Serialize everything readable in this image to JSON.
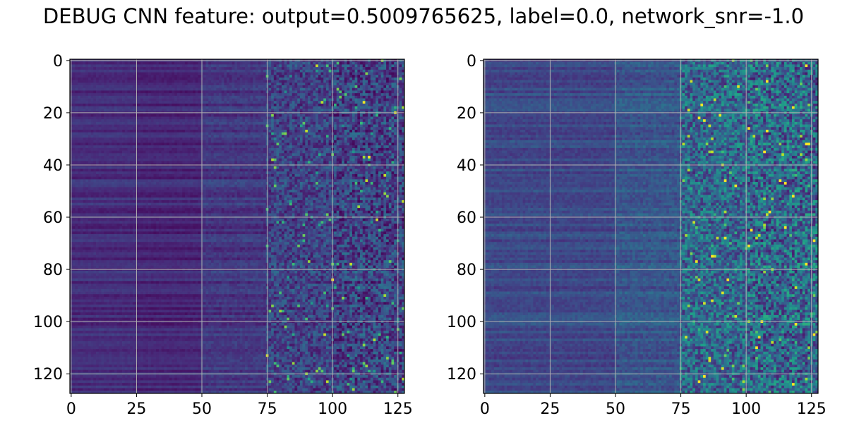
{
  "figure": {
    "title": "DEBUG CNN feature: output=0.5009765625, label=0.0, network_snr=-1.0"
  },
  "colormap": {
    "name": "viridis",
    "stops": [
      "#440154",
      "#482878",
      "#3e4a89",
      "#31688e",
      "#26828e",
      "#1f9e89",
      "#35b779",
      "#6ece58",
      "#b5de2b",
      "#fde725"
    ]
  },
  "chart_data": [
    {
      "type": "heatmap",
      "rows": 128,
      "cols": 128,
      "xlim": [
        -0.5,
        127.5
      ],
      "ylim": [
        127.5,
        -0.5
      ],
      "x_ticks": [
        0,
        25,
        50,
        75,
        100,
        125
      ],
      "y_ticks": [
        0,
        20,
        40,
        60,
        80,
        100,
        120
      ],
      "grid": true,
      "value_range": [
        0,
        1
      ],
      "profile": {
        "regions": [
          {
            "col_start": 0,
            "col_end": 25,
            "mean": 0.13
          },
          {
            "col_start": 25,
            "col_end": 50,
            "mean": 0.11
          },
          {
            "col_start": 50,
            "col_end": 75,
            "mean": 0.16
          },
          {
            "col_start": 75,
            "col_end": 128,
            "mean": 0.2
          }
        ],
        "noise_by_column": [
          [
            0,
            0.02
          ],
          [
            50,
            0.04
          ],
          [
            75,
            0.14
          ],
          [
            100,
            0.18
          ]
        ],
        "peak": {
          "row": 37,
          "col": 114,
          "value": 1.0
        }
      }
    },
    {
      "type": "heatmap",
      "rows": 128,
      "cols": 128,
      "xlim": [
        -0.5,
        127.5
      ],
      "ylim": [
        127.5,
        -0.5
      ],
      "x_ticks": [
        0,
        25,
        50,
        75,
        100,
        125
      ],
      "y_ticks": [
        0,
        20,
        40,
        60,
        80,
        100,
        120
      ],
      "grid": true,
      "value_range": [
        0,
        1
      ],
      "profile": {
        "regions": [
          {
            "col_start": 0,
            "col_end": 50,
            "mean": 0.22
          },
          {
            "col_start": 50,
            "col_end": 75,
            "mean": 0.27
          },
          {
            "col_start": 75,
            "col_end": 128,
            "mean": 0.34
          }
        ],
        "noise_by_column": [
          [
            0,
            0.04
          ],
          [
            50,
            0.06
          ],
          [
            75,
            0.22
          ],
          [
            100,
            0.26
          ]
        ],
        "peak": {
          "row": 27,
          "col": 108,
          "value": 1.0
        }
      }
    }
  ]
}
